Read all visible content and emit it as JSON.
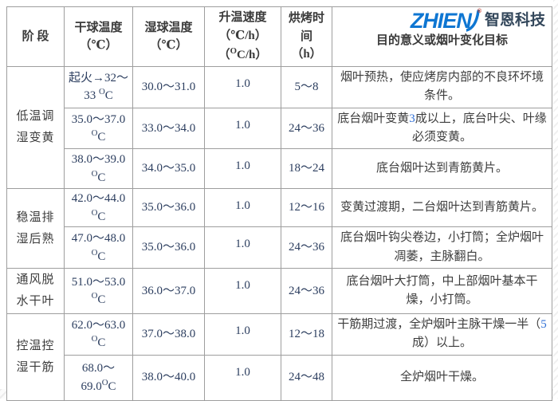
{
  "logo": {
    "zhien": "ZHIEN",
    "cn": "智恩科技",
    "reg": "®",
    "blue": "#0e76d2",
    "dark": "#33475b"
  },
  "colors": {
    "border": "#9e9e9e",
    "number_text": "#2c3e5f",
    "body_text": "#3d3d3d",
    "highlight_blue": "#2f6fd6"
  },
  "table": {
    "headers": {
      "stage": "阶  段",
      "dry_l1": "干球温度",
      "dry_l2": "（℃）",
      "wet_l1": "湿球温度",
      "wet_l2": "（℃）",
      "rate_l1": "升温速度",
      "rate_l2": "（℃/h）",
      "rate_l3_parts": [
        {
          "t": "（"
        },
        {
          "t": "O",
          "sup": 1
        },
        {
          "t": "C/h）"
        }
      ],
      "time_l1": "烘烤时间",
      "time_l2": "（h）",
      "purpose": "目的意义或烟叶变化目标"
    },
    "stages": [
      {
        "label": "低温调湿变黄",
        "rowspan": 3
      },
      {
        "label": "稳温排湿后熟",
        "rowspan": 2
      },
      {
        "label": "通风脱水干叶",
        "rowspan": 1
      },
      {
        "label": "控温控湿干筋",
        "rowspan": 2
      }
    ],
    "rows": [
      {
        "dry_parts": [
          {
            "t": "起火→32～"
          },
          {
            "br": 1
          },
          {
            "t": "33 "
          },
          {
            "t": "O",
            "sup": 1
          },
          {
            "t": "C"
          }
        ],
        "wet": "30.0～31.0",
        "rate": "1.0",
        "time": "5～8",
        "purpose_parts": [
          {
            "t": "烟叶预热，使应烤房内部的不良环坏境条件。"
          }
        ]
      },
      {
        "dry_parts": [
          {
            "t": "35.0～37.0"
          },
          {
            "br": 1
          },
          {
            "t": "O",
            "sup": 1
          },
          {
            "t": "C"
          }
        ],
        "wet": "33.0～34.0",
        "rate": "1.0",
        "time": "24～36",
        "purpose_parts": [
          {
            "t": "底台烟叶变黄"
          },
          {
            "t": "3",
            "c": "#2f6fd6"
          },
          {
            "t": "成以上，底台叶尖、叶缘必须变黄。"
          }
        ]
      },
      {
        "dry_parts": [
          {
            "t": "38.0～39.0"
          },
          {
            "br": 1
          },
          {
            "t": "O",
            "sup": 1
          },
          {
            "t": "C"
          }
        ],
        "wet": "34.0～35.0",
        "rate": "1.0",
        "time": "18～24",
        "purpose_parts": [
          {
            "t": "底台烟叶达到青筋黄片。"
          }
        ]
      },
      {
        "dry_parts": [
          {
            "t": "42.0～44.0"
          },
          {
            "br": 1
          },
          {
            "t": "O",
            "sup": 1
          },
          {
            "t": "C"
          }
        ],
        "wet": "35.0～36.0",
        "rate": "1.0",
        "time": "12～16",
        "purpose_parts": [
          {
            "t": "变黄过渡期，二台烟叶达到青筋黄片。"
          }
        ]
      },
      {
        "dry_parts": [
          {
            "t": "47.0～48.0"
          },
          {
            "br": 1
          },
          {
            "t": "O",
            "sup": 1
          },
          {
            "t": "C"
          }
        ],
        "wet": "35.0～36.0",
        "rate": "1.0",
        "time": "24～36",
        "purpose_parts": [
          {
            "t": "底台烟叶钩尖卷边，小打筒；全炉烟叶凋萎，主脉翻白。"
          }
        ]
      },
      {
        "dry_parts": [
          {
            "t": "51.0～53.0"
          },
          {
            "br": 1
          },
          {
            "t": "O",
            "sup": 1
          },
          {
            "t": "C"
          }
        ],
        "wet": "36.0～37.0",
        "rate": "1.0",
        "time": "24～36",
        "purpose_parts": [
          {
            "t": "底台烟叶大打筒，中上部烟叶基本干燥，小打筒。"
          }
        ]
      },
      {
        "dry_parts": [
          {
            "t": "62.0～63.0"
          },
          {
            "br": 1
          },
          {
            "t": "O",
            "sup": 1
          },
          {
            "t": "C"
          }
        ],
        "wet": "37.0～38.0",
        "rate": "1.0",
        "time": "12～18",
        "purpose_parts": [
          {
            "t": "干筋期过渡，全炉烟叶主脉干燥一半（"
          },
          {
            "t": "5",
            "c": "#2f6fd6"
          },
          {
            "t": "成）以上。"
          }
        ]
      },
      {
        "dry_parts": [
          {
            "t": "68.0～"
          },
          {
            "br": 1
          },
          {
            "t": "69.0"
          },
          {
            "t": "O",
            "sup": 1
          },
          {
            "t": "C"
          }
        ],
        "wet": "38.0～40.0",
        "rate": "1.0",
        "time": "24～48",
        "purpose_parts": [
          {
            "t": "全炉烟叶干燥。"
          }
        ]
      }
    ]
  }
}
